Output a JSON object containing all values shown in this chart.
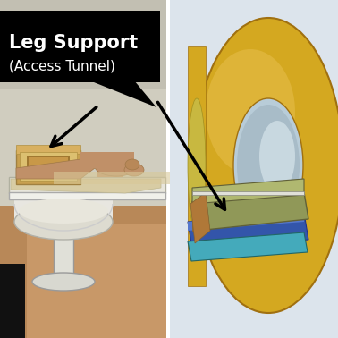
{
  "figsize": [
    3.78,
    3.78
  ],
  "dpi": 100,
  "label_text": "Leg Support",
  "label_subtext": "(Access Tunnel)",
  "label_box_color": "#000000",
  "label_text_color": "#ffffff",
  "label_fontsize": 15,
  "label_subfontsize": 11,
  "mri_gold": "#D4A820",
  "mri_gold_mid": "#C09018",
  "mri_gold_dark": "#A07010",
  "mri_gold_light": "#E8C050",
  "right_bg": "#dce4ec",
  "support_olive": "#909858",
  "support_olive_light": "#b0b870",
  "support_blue": "#3355AA",
  "support_blue_light": "#5577CC",
  "support_cyan": "#44AABB",
  "support_orange": "#C08040",
  "left_wall_top": "#c8c4b4",
  "left_wall_mid": "#b8b4a4",
  "left_floor": "#b08860",
  "left_floor2": "#c8a870",
  "table_color": "#e8e8e0",
  "table_edge": "#c0c0b0",
  "sheet_color": "#d8cca0",
  "skin_color": "#c8a078",
  "leg_box_color": "#c0a060",
  "black_sq": "#111111"
}
